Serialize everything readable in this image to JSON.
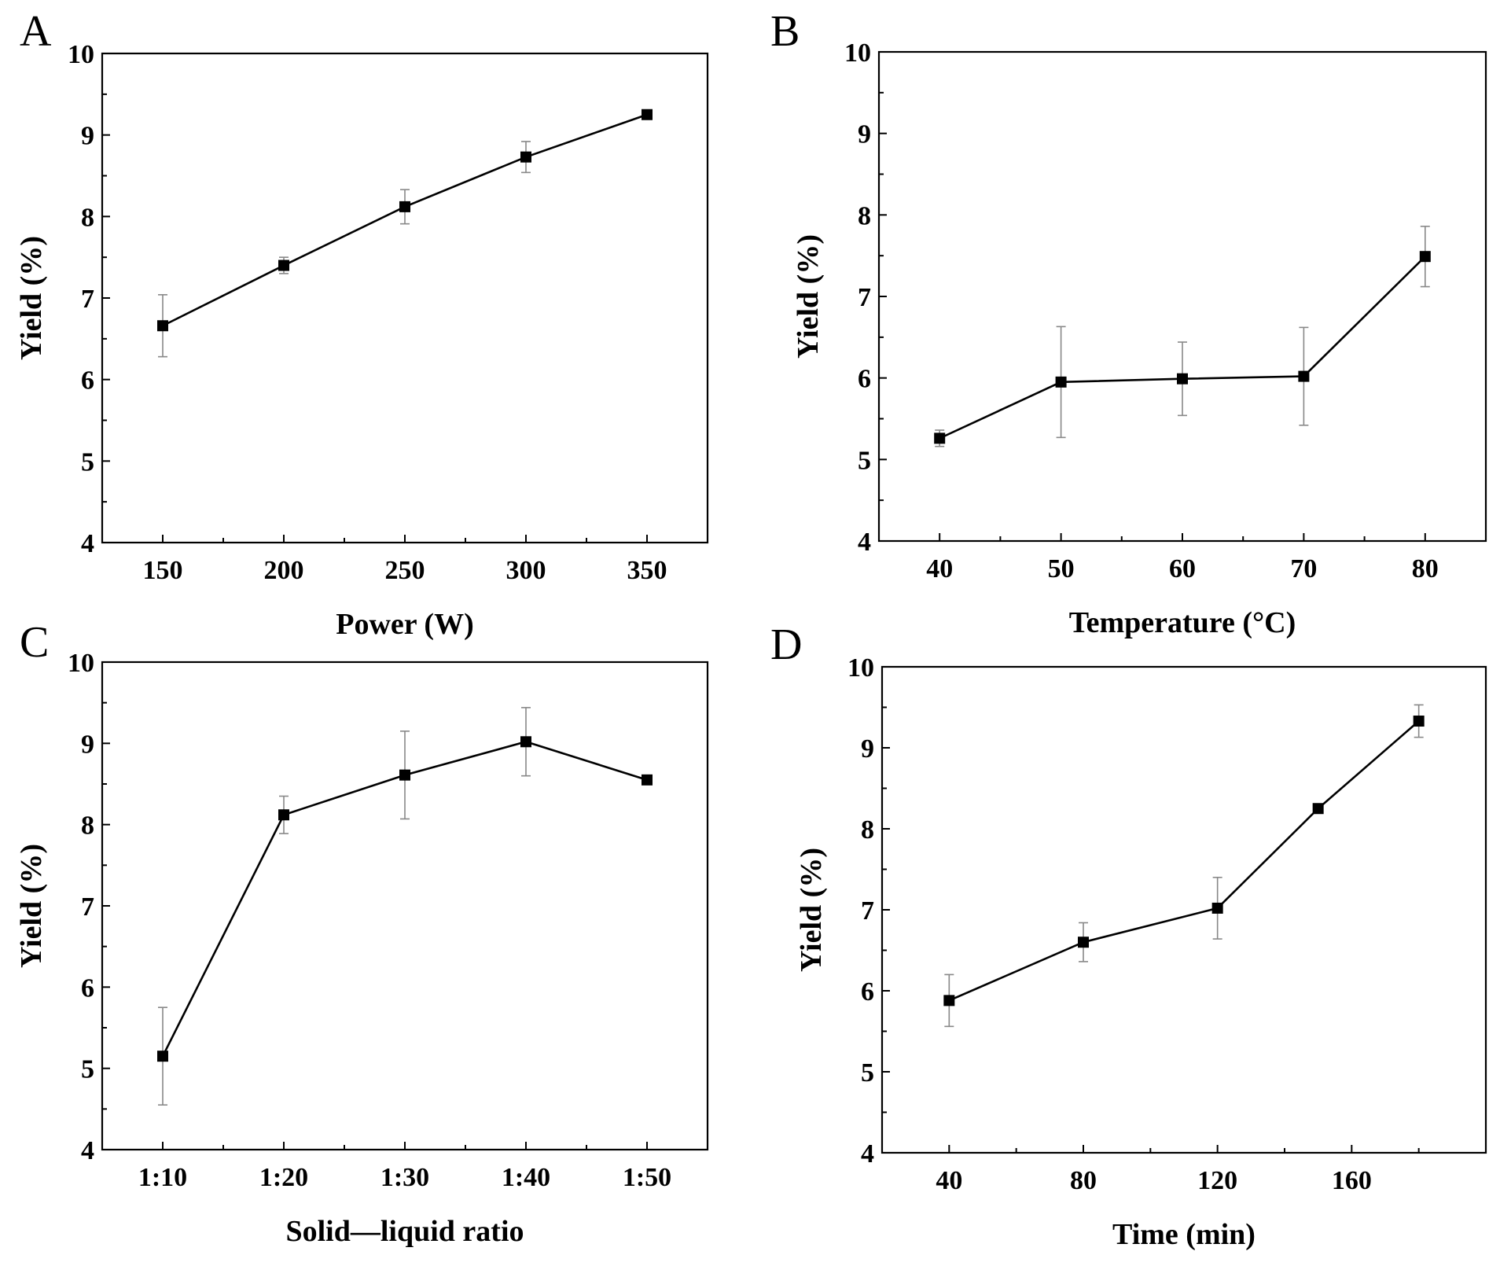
{
  "chart_data": [
    {
      "type": "line",
      "panel": "A",
      "xlabel": "Power (W)",
      "ylabel": "Yield (%)",
      "xlim": [
        125,
        375
      ],
      "ylim": [
        4,
        10
      ],
      "xticks": [
        150,
        200,
        250,
        300,
        350
      ],
      "xtick_labels": [
        "150",
        "200",
        "250",
        "300",
        "350"
      ],
      "yticks": [
        4,
        5,
        6,
        7,
        8,
        9,
        10
      ],
      "ytick_labels": [
        "4",
        "5",
        "6",
        "7",
        "8",
        "9",
        "10"
      ],
      "x": [
        150,
        200,
        250,
        300,
        350
      ],
      "y": [
        6.66,
        7.4,
        8.12,
        8.73,
        9.25
      ],
      "yerr": [
        0.38,
        0.1,
        0.21,
        0.19,
        0.03
      ]
    },
    {
      "type": "line",
      "panel": "B",
      "xlabel": "Temperature (°C)",
      "ylabel": "Yield (%)",
      "xlim": [
        35,
        85
      ],
      "ylim": [
        4,
        10
      ],
      "xticks": [
        40,
        50,
        60,
        70,
        80
      ],
      "xtick_labels": [
        "40",
        "50",
        "60",
        "70",
        "80"
      ],
      "yticks": [
        4,
        5,
        6,
        7,
        8,
        9,
        10
      ],
      "ytick_labels": [
        "4",
        "5",
        "6",
        "7",
        "8",
        "9",
        "10"
      ],
      "x": [
        40,
        50,
        60,
        70,
        80
      ],
      "y": [
        5.26,
        5.95,
        5.99,
        6.02,
        7.49
      ],
      "yerr": [
        0.1,
        0.68,
        0.45,
        0.6,
        0.37
      ]
    },
    {
      "type": "line",
      "panel": "C",
      "xlabel": "Solid—liquid ratio",
      "ylabel": "Yield (%)",
      "xlim": [
        0.5,
        5.5
      ],
      "ylim": [
        4,
        10
      ],
      "xticks": [
        1,
        2,
        3,
        4,
        5
      ],
      "xtick_labels": [
        "1:10",
        "1:20",
        "1:30",
        "1:40",
        "1:50"
      ],
      "yticks": [
        4,
        5,
        6,
        7,
        8,
        9,
        10
      ],
      "ytick_labels": [
        "4",
        "5",
        "6",
        "7",
        "8",
        "9",
        "10"
      ],
      "x": [
        1,
        2,
        3,
        4,
        5
      ],
      "y": [
        5.15,
        8.12,
        8.61,
        9.02,
        8.55
      ],
      "yerr": [
        0.6,
        0.23,
        0.54,
        0.42,
        0.03
      ]
    },
    {
      "type": "line",
      "panel": "D",
      "xlabel": "Time (min)",
      "ylabel": "Yield (%)",
      "xlim": [
        20,
        200
      ],
      "ylim": [
        4,
        10
      ],
      "xticks": [
        40,
        80,
        120,
        160
      ],
      "xtick_labels": [
        "40",
        "80",
        "120",
        "160"
      ],
      "yticks": [
        4,
        5,
        6,
        7,
        8,
        9,
        10
      ],
      "ytick_labels": [
        "4",
        "5",
        "6",
        "7",
        "8",
        "9",
        "10"
      ],
      "x": [
        40,
        80,
        120,
        150,
        180
      ],
      "y": [
        5.88,
        6.6,
        7.02,
        8.25,
        9.33
      ],
      "yerr": [
        0.32,
        0.24,
        0.38,
        0.03,
        0.2
      ]
    }
  ]
}
